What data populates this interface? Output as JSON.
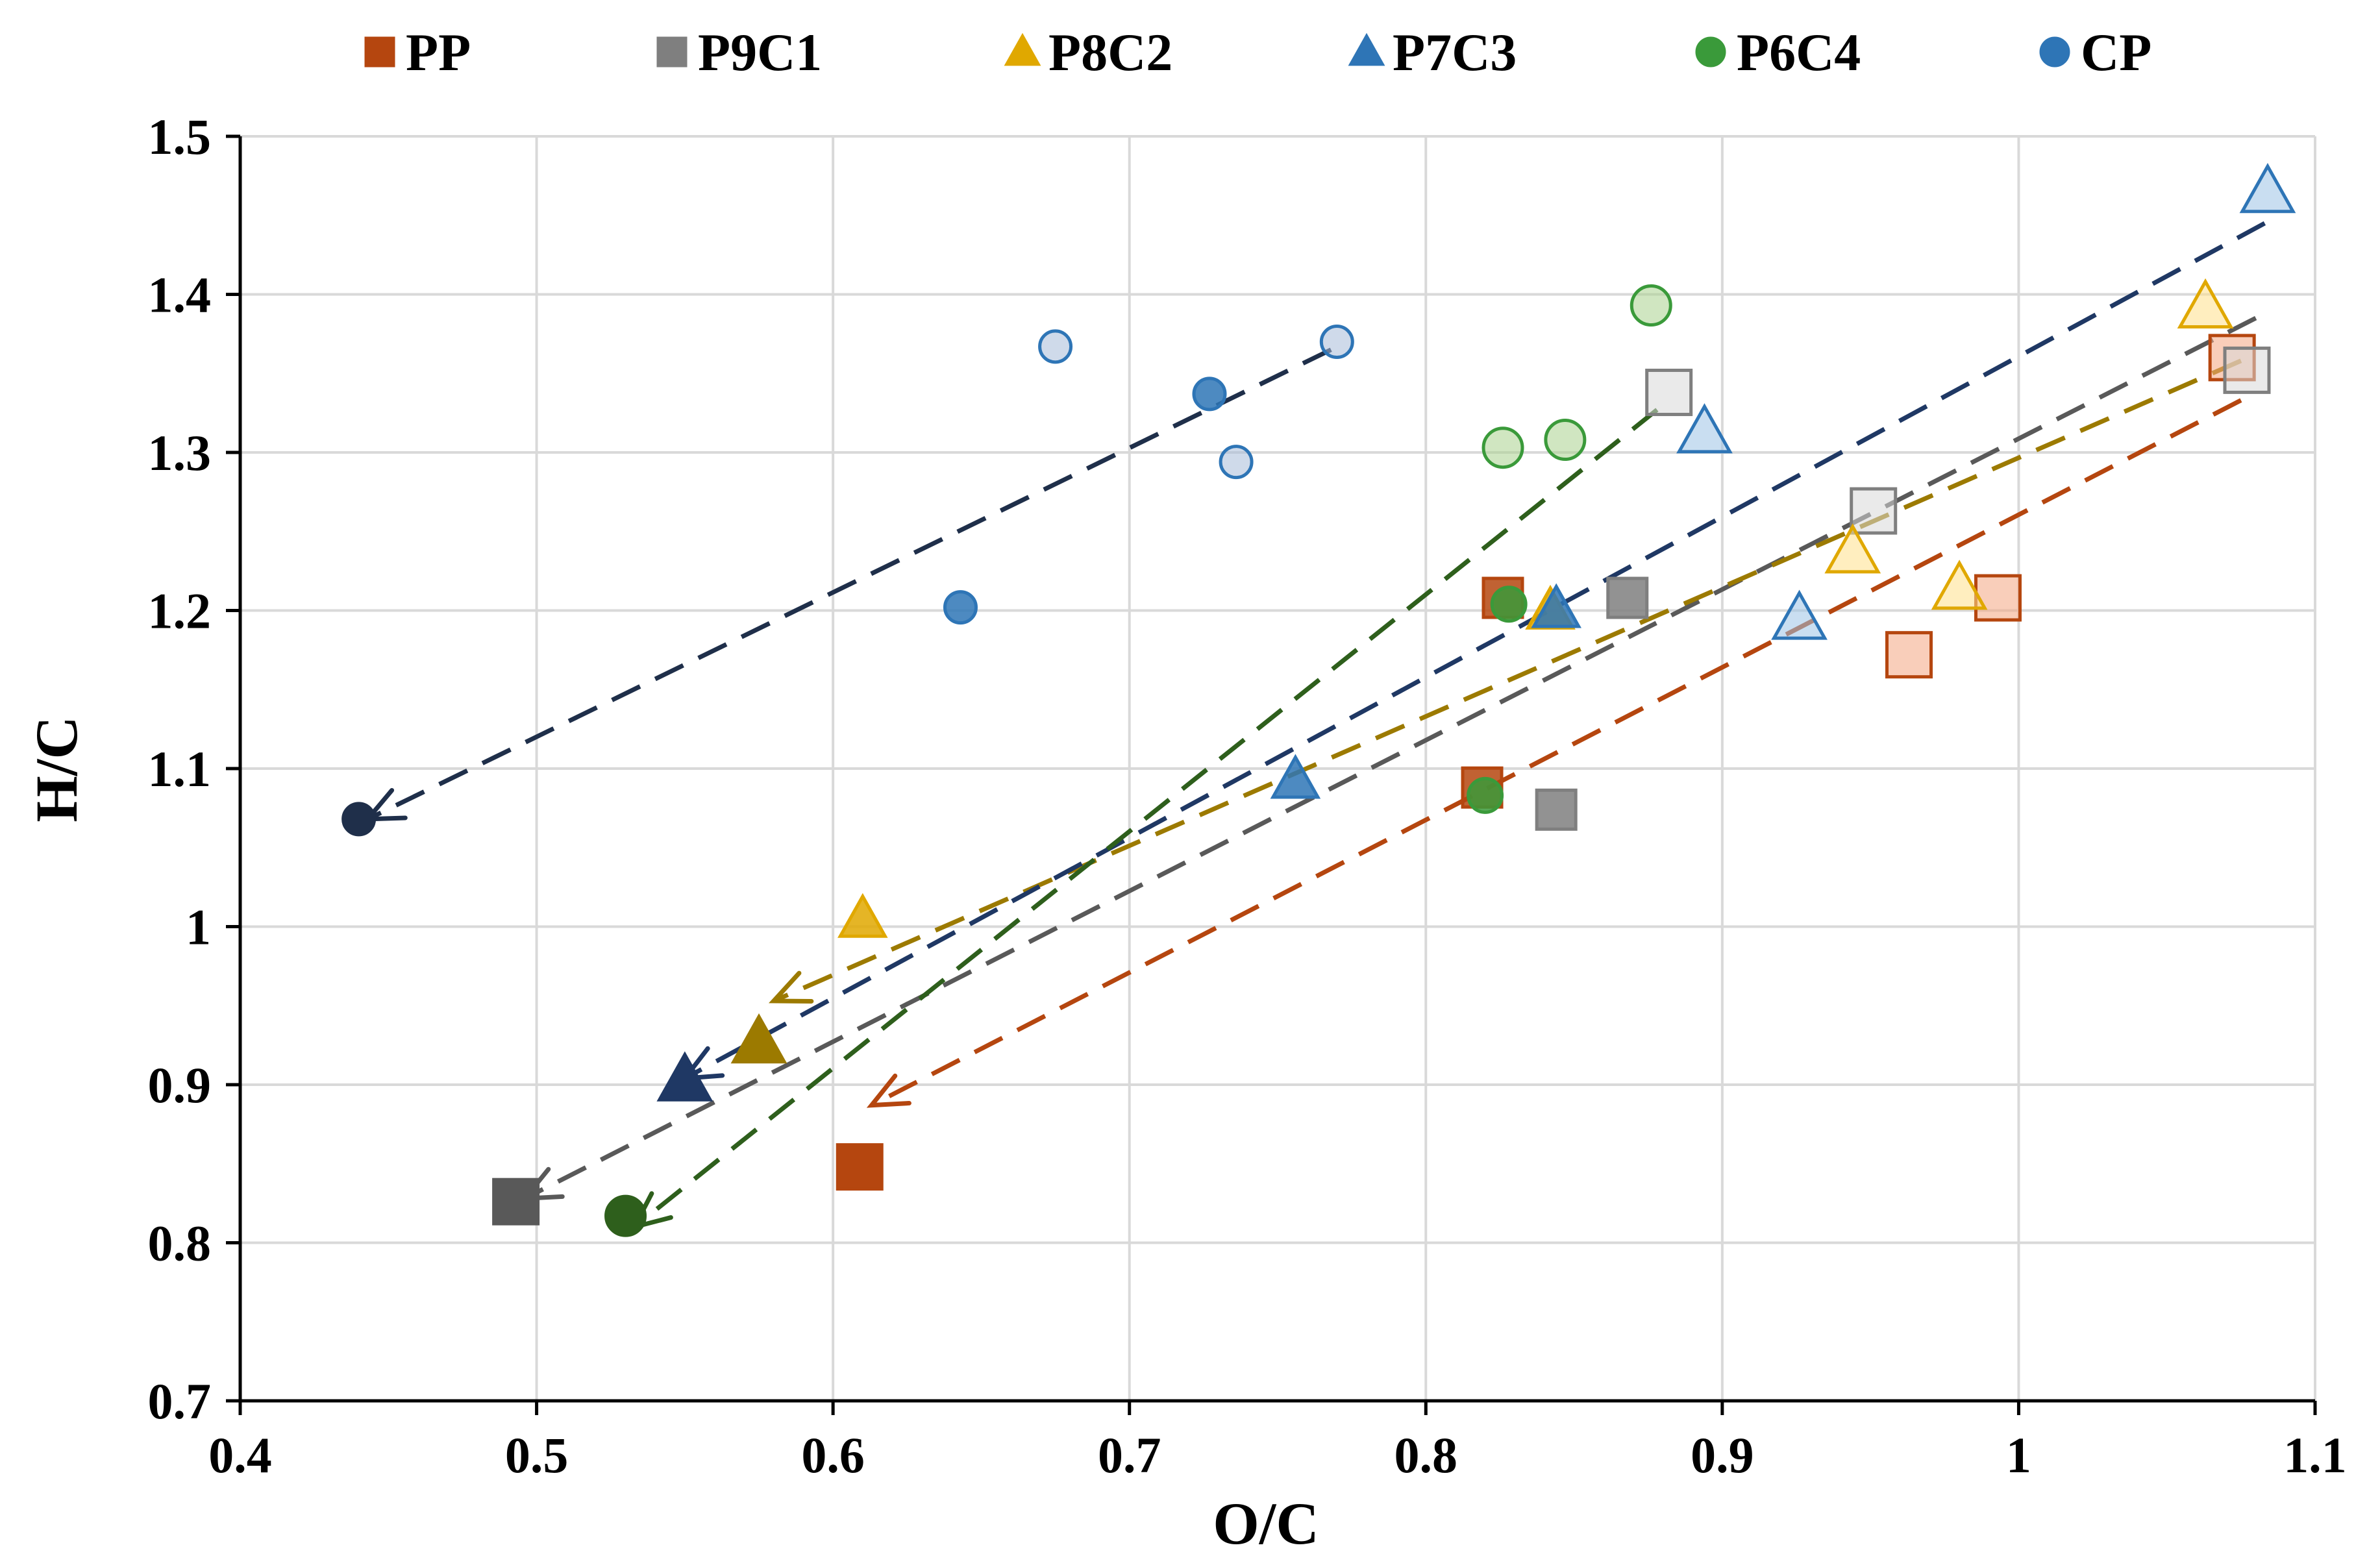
{
  "chart_data": {
    "type": "scatter",
    "title": "",
    "xlabel": "O/C",
    "ylabel": "H/C",
    "xlim": [
      0.4,
      1.1
    ],
    "ylim": [
      0.7,
      1.5
    ],
    "xticks": [
      0.4,
      0.5,
      0.6,
      0.7,
      0.8,
      0.9,
      1.0,
      1.1
    ],
    "xtick_labels": [
      "0.4",
      "0.5",
      "0.6",
      "0.7",
      "0.8",
      "0.9",
      "1",
      "1.1"
    ],
    "yticks": [
      0.7,
      0.8,
      0.9,
      1.0,
      1.1,
      1.2,
      1.3,
      1.4,
      1.5
    ],
    "ytick_labels": [
      "0.7",
      "0.8",
      "0.9",
      "1",
      "1.1",
      "1.2",
      "1.3",
      "1.4",
      "1.5"
    ],
    "grid": true,
    "legend_position": "top",
    "series": [
      {
        "name": "PP",
        "marker": "square",
        "color": "#B5460F",
        "light": "#F4A582",
        "arrow_color": "#B5460F",
        "points": [
          {
            "x": 1.072,
            "y": 1.36,
            "stage": 0
          },
          {
            "x": 0.993,
            "y": 1.208,
            "stage": 0
          },
          {
            "x": 0.963,
            "y": 1.172,
            "stage": 0
          },
          {
            "x": 0.826,
            "y": 1.208,
            "stage": 1
          },
          {
            "x": 0.819,
            "y": 1.088,
            "stage": 1
          },
          {
            "x": 0.609,
            "y": 0.848,
            "stage": 2
          }
        ],
        "arrow": {
          "from": [
            1.075,
            1.333
          ],
          "to": [
            0.613,
            0.887
          ]
        }
      },
      {
        "name": "P9C1",
        "marker": "square",
        "color": "#7F7F7F",
        "light": "#D9D9D9",
        "arrow_color": "#595959",
        "points": [
          {
            "x": 1.077,
            "y": 1.352,
            "stage": 0
          },
          {
            "x": 0.951,
            "y": 1.263,
            "stage": 0
          },
          {
            "x": 0.882,
            "y": 1.338,
            "stage": 0
          },
          {
            "x": 0.868,
            "y": 1.208,
            "stage": 1
          },
          {
            "x": 0.844,
            "y": 1.074,
            "stage": 1
          },
          {
            "x": 0.493,
            "y": 0.826,
            "stage": 2
          }
        ],
        "arrow": {
          "from": [
            1.08,
            1.385
          ],
          "to": [
            0.496,
            0.828
          ]
        }
      },
      {
        "name": "P8C2",
        "marker": "triangle",
        "color": "#E0A800",
        "light": "#FFE08A",
        "arrow_color": "#9C7A00",
        "points": [
          {
            "x": 1.063,
            "y": 1.392,
            "stage": 0
          },
          {
            "x": 0.98,
            "y": 1.214,
            "stage": 0
          },
          {
            "x": 0.944,
            "y": 1.237,
            "stage": 0
          },
          {
            "x": 0.842,
            "y": 1.2,
            "stage": 1
          },
          {
            "x": 0.61,
            "y": 1.005,
            "stage": 1
          },
          {
            "x": 0.575,
            "y": 0.927,
            "stage": 2
          }
        ],
        "arrow": {
          "from": [
            1.075,
            1.358
          ],
          "to": [
            0.58,
            0.953
          ]
        }
      },
      {
        "name": "P7C3",
        "marker": "triangle",
        "color": "#2E75B6",
        "light": "#9DC3E6",
        "arrow_color": "#1F3864",
        "points": [
          {
            "x": 1.084,
            "y": 1.465,
            "stage": 0
          },
          {
            "x": 0.894,
            "y": 1.313,
            "stage": 0
          },
          {
            "x": 0.926,
            "y": 1.195,
            "stage": 0
          },
          {
            "x": 0.844,
            "y": 1.201,
            "stage": 1
          },
          {
            "x": 0.756,
            "y": 1.093,
            "stage": 1
          },
          {
            "x": 0.55,
            "y": 0.903,
            "stage": 2
          }
        ],
        "arrow": {
          "from": [
            1.083,
            1.445
          ],
          "to": [
            0.55,
            0.904
          ]
        }
      },
      {
        "name": "P6C4",
        "marker": "circle",
        "color": "#3A9A3A",
        "light": "#A9D18E",
        "arrow_color": "#2E5F1C",
        "points": [
          {
            "x": 0.876,
            "y": 1.393,
            "stage": 0
          },
          {
            "x": 0.847,
            "y": 1.308,
            "stage": 0
          },
          {
            "x": 0.826,
            "y": 1.303,
            "stage": 0
          },
          {
            "x": 0.828,
            "y": 1.204,
            "stage": 1
          },
          {
            "x": 0.82,
            "y": 1.083,
            "stage": 1
          },
          {
            "x": 0.53,
            "y": 0.817,
            "stage": 2
          }
        ],
        "arrow": {
          "from": [
            0.878,
            1.327
          ],
          "to": [
            0.533,
            0.81
          ]
        }
      },
      {
        "name": "CP",
        "marker": "circle",
        "color": "#2E75B6",
        "light": "#A8BCD8",
        "arrow_color": "#1F2F4A",
        "points": [
          {
            "x": 0.77,
            "y": 1.37,
            "stage": 0
          },
          {
            "x": 0.736,
            "y": 1.294,
            "stage": 0
          },
          {
            "x": 0.675,
            "y": 1.367,
            "stage": 0
          },
          {
            "x": 0.727,
            "y": 1.337,
            "stage": 1
          },
          {
            "x": 0.643,
            "y": 1.202,
            "stage": 1
          },
          {
            "x": 0.44,
            "y": 1.068,
            "stage": 2
          }
        ],
        "arrow": {
          "from": [
            0.768,
            1.365
          ],
          "to": [
            0.443,
            1.068
          ]
        }
      }
    ]
  }
}
